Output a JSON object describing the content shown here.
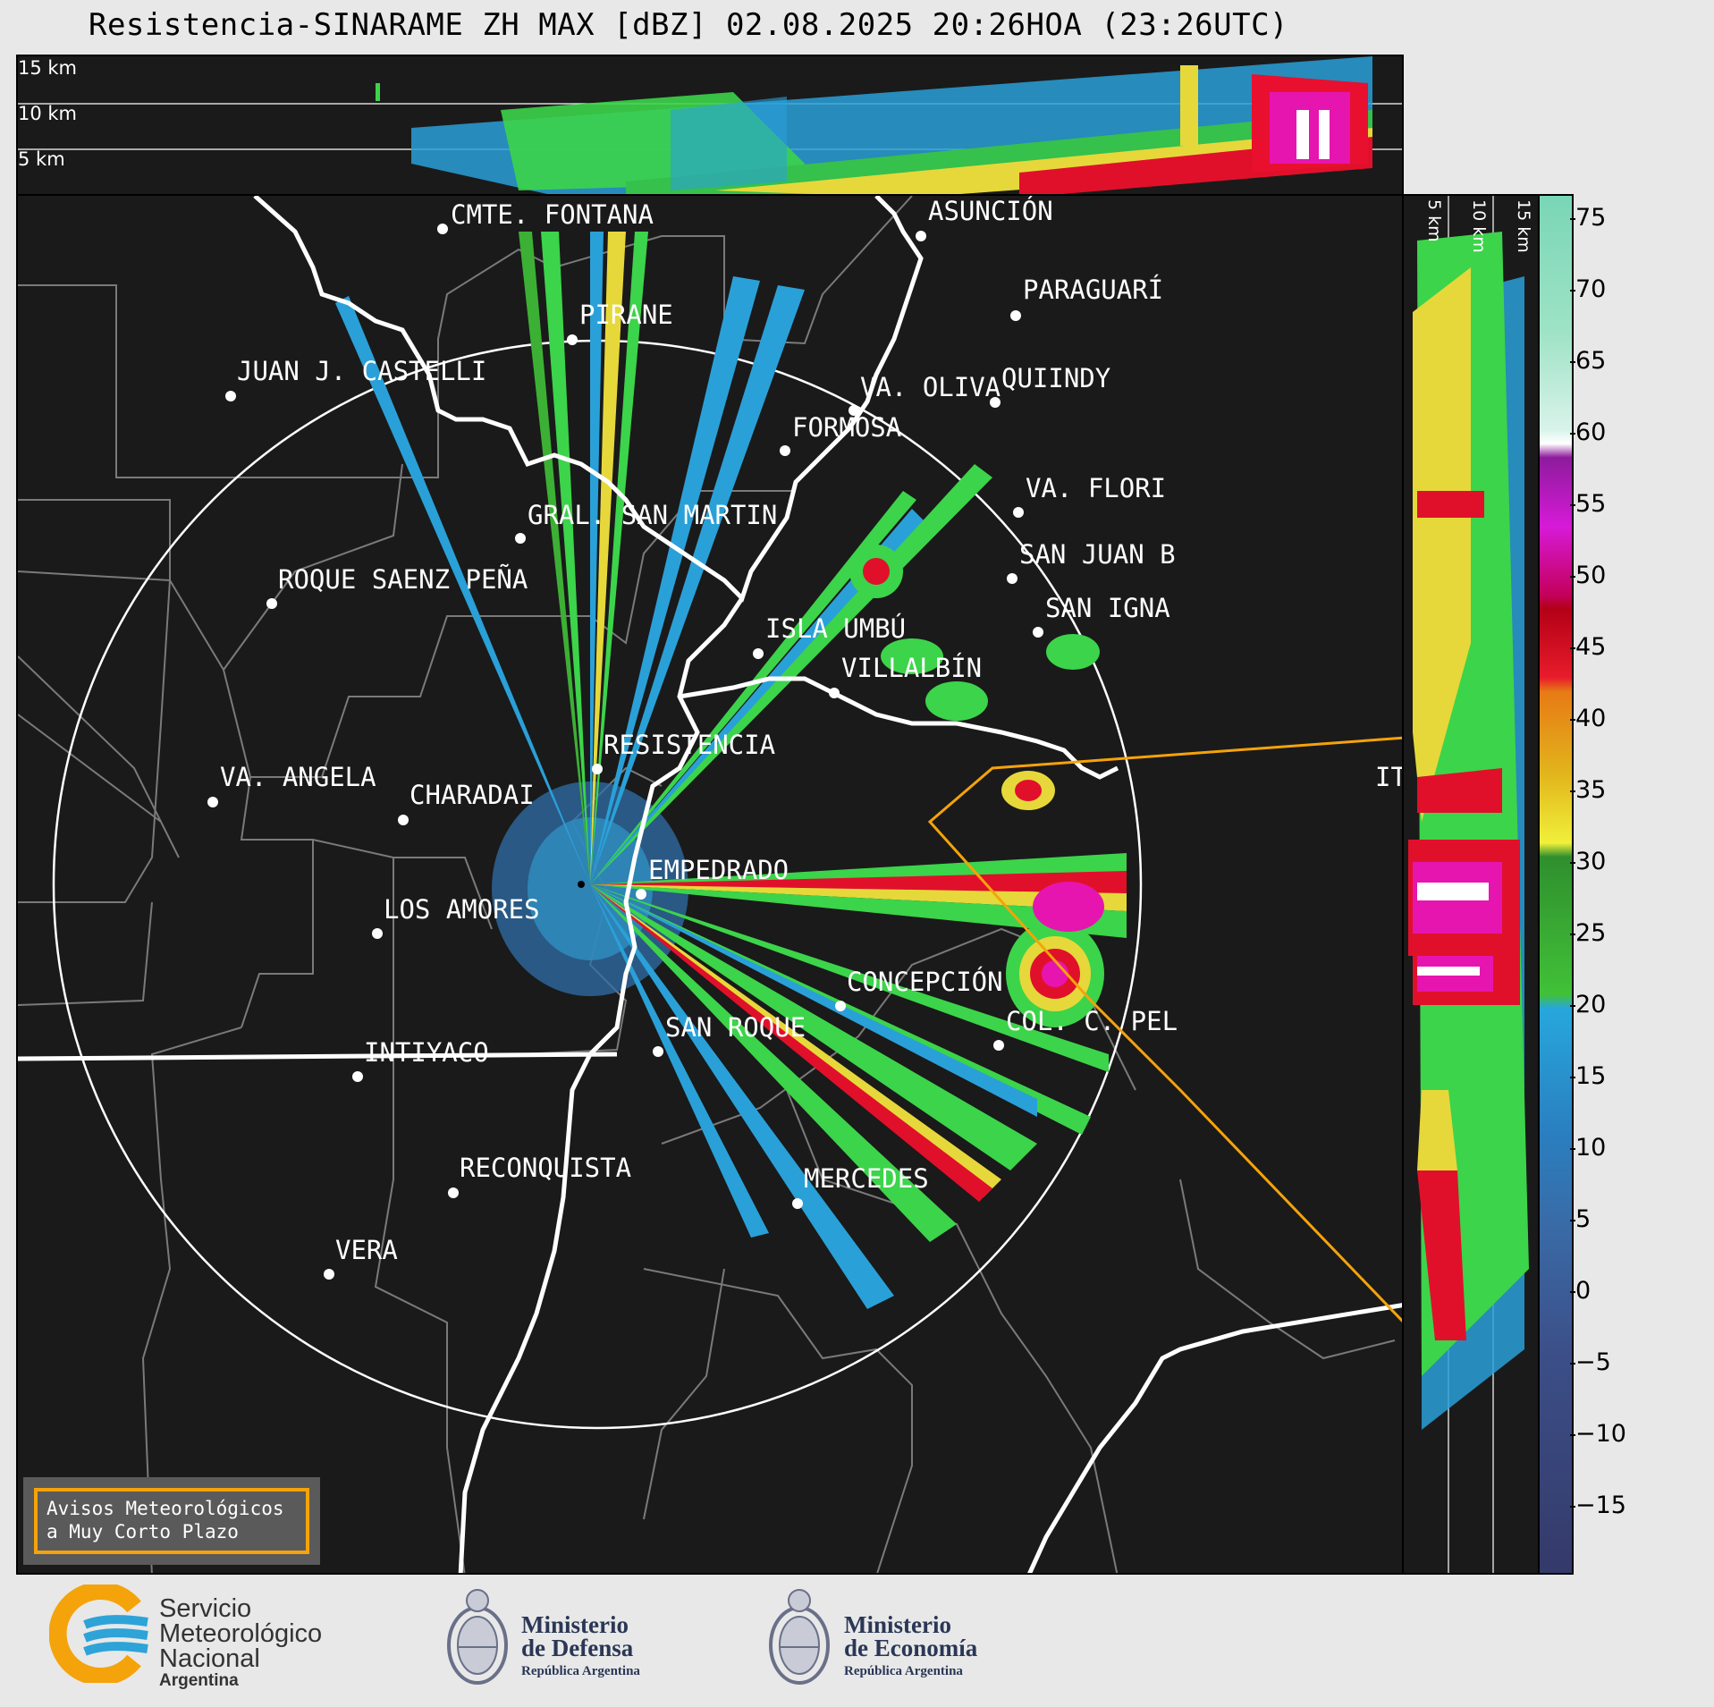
{
  "title": "Resistencia-SINARAME ZH MAX [dBZ] 02.08.2025 20:26HOA (23:26UTC)",
  "top_panel": {
    "height_labels": [
      "15 km",
      "10 km",
      "5 km"
    ]
  },
  "side_panel": {
    "height_labels": [
      "5 km",
      "10 km",
      "15 km"
    ]
  },
  "cities": [
    "CMTE. FONTANA",
    "ASUNCIÓN",
    "PARAGUARÍ",
    "PIRANE",
    "JUAN J. CASTELLI",
    "QUIINDY",
    "VA. OLIVA",
    "FORMOSA",
    "VA. FLORI",
    "GRAL. SAN MARTIN",
    "SAN JUAN B",
    "ROQUE SAENZ PEÑA",
    "SAN IGNA",
    "ISLA UMBÚ",
    "VILLALBÍN",
    "RESISTENCIA",
    "VA. ANGELA",
    "CHARADAI",
    "IT",
    "EMPEDRADO",
    "LOS AMORES",
    "CONCEPCIÓN",
    "SAN ROQUE",
    "COL. C. PEL",
    "INTIYACO",
    "RECONQUISTA",
    "MERCEDES",
    "VERA"
  ],
  "colorbar": {
    "unit": "dBZ",
    "ticks": [
      "75",
      "70",
      "65",
      "60",
      "55",
      "50",
      "45",
      "40",
      "35",
      "30",
      "25",
      "20",
      "15",
      "10",
      "5",
      "0",
      "−5",
      "−10",
      "−15"
    ],
    "range": [
      -20,
      77
    ]
  },
  "warning": {
    "line1": "Avisos Meteorológicos",
    "line2": "a Muy Corto Plazo"
  },
  "logos": {
    "smn": {
      "line1": "Servicio",
      "line2": "Meteorológico",
      "line3": "Nacional",
      "line4": "Argentina"
    },
    "defensa": {
      "line1": "Ministerio",
      "line2": "de Defensa",
      "line3": "República Argentina"
    },
    "economia": {
      "line1": "Ministerio",
      "line2": "de Economía",
      "line3": "República Argentina"
    }
  },
  "colors": {
    "panel_bg": "#1a1a1a",
    "border_line": "#ffffff",
    "warning_polygon": "#f5a30b",
    "smn_orange": "#f5a30b",
    "smn_blue": "#2ea3d8"
  }
}
